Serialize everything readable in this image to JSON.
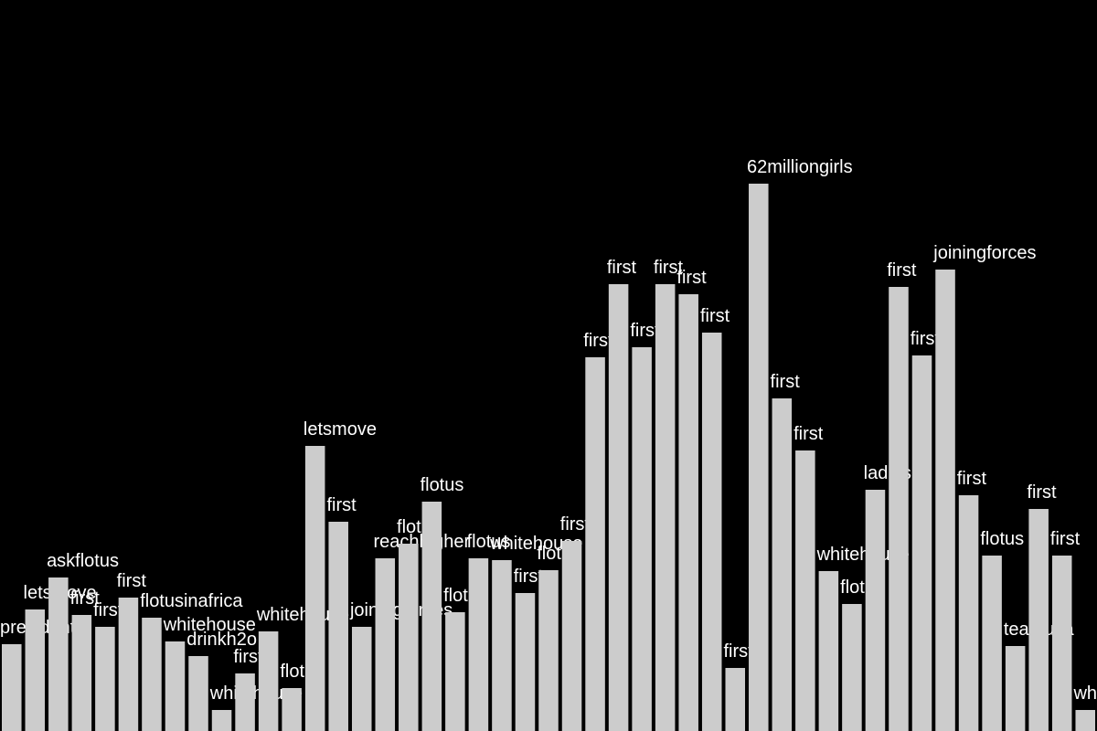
{
  "chart_data": {
    "type": "bar",
    "categories": [
      "president",
      "letsmove",
      "askflotus",
      "first",
      "first",
      "first",
      "flotusinafrica",
      "whitehouse",
      "drinkh2o",
      "whitehouse",
      "first",
      "whitehouse",
      "flotus",
      "letsmove",
      "first",
      "joiningforces",
      "reachhigher",
      "flotus",
      "flotus",
      "flotus",
      "flotus",
      "whitehouse",
      "first",
      "flotus",
      "first",
      "first",
      "first",
      "first",
      "first",
      "first",
      "first",
      "first",
      "62milliongirls",
      "first",
      "first",
      "whitehouse",
      "flotus",
      "ladies",
      "first",
      "first",
      "joiningforces",
      "first",
      "flotus",
      "teamusa",
      "first",
      "first",
      "whitehouse"
    ],
    "values": [
      95,
      133,
      168,
      127,
      114,
      146,
      124,
      98,
      82,
      23,
      63,
      109,
      47,
      312,
      229,
      114,
      189,
      205,
      251,
      130,
      189,
      187,
      151,
      176,
      208,
      409,
      489,
      420,
      489,
      478,
      436,
      69,
      599,
      364,
      307,
      175,
      139,
      264,
      486,
      411,
      505,
      258,
      192,
      93,
      243,
      192,
      23
    ],
    "color": "#cccccc",
    "background": "#000000",
    "label_color": "#ffffff",
    "ylim": [
      0,
      800
    ]
  }
}
